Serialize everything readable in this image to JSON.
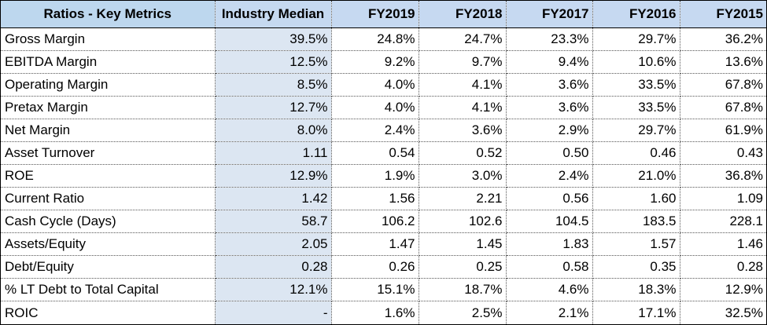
{
  "table": {
    "headers": [
      "Ratios - Key Metrics",
      "Industry Median",
      "FY2019",
      "FY2018",
      "FY2017",
      "FY2016",
      "FY2015"
    ],
    "rows": [
      {
        "label": "Gross Margin",
        "values": [
          "39.5%",
          "24.8%",
          "24.7%",
          "23.3%",
          "29.7%",
          "36.2%"
        ]
      },
      {
        "label": "EBITDA Margin",
        "values": [
          "12.5%",
          "9.2%",
          "9.7%",
          "9.4%",
          "10.6%",
          "13.6%"
        ]
      },
      {
        "label": "Operating Margin",
        "values": [
          "8.5%",
          "4.0%",
          "4.1%",
          "3.6%",
          "33.5%",
          "67.8%"
        ]
      },
      {
        "label": "Pretax Margin",
        "values": [
          "12.7%",
          "4.0%",
          "4.1%",
          "3.6%",
          "33.5%",
          "67.8%"
        ]
      },
      {
        "label": "Net Margin",
        "values": [
          "8.0%",
          "2.4%",
          "3.6%",
          "2.9%",
          "29.7%",
          "61.9%"
        ]
      },
      {
        "label": "Asset Turnover",
        "values": [
          "1.11",
          "0.54",
          "0.52",
          "0.50",
          "0.46",
          "0.43"
        ]
      },
      {
        "label": "ROE",
        "values": [
          "12.9%",
          "1.9%",
          "3.0%",
          "2.4%",
          "21.0%",
          "36.8%"
        ]
      },
      {
        "label": "Current Ratio",
        "values": [
          "1.42",
          "1.56",
          "2.21",
          "0.56",
          "1.60",
          "1.09"
        ]
      },
      {
        "label": "Cash Cycle (Days)",
        "values": [
          "58.7",
          "106.2",
          "102.6",
          "104.5",
          "183.5",
          "228.1"
        ]
      },
      {
        "label": "Assets/Equity",
        "values": [
          "2.05",
          "1.47",
          "1.45",
          "1.83",
          "1.57",
          "1.46"
        ]
      },
      {
        "label": "Debt/Equity",
        "values": [
          "0.28",
          "0.26",
          "0.25",
          "0.58",
          "0.35",
          "0.28"
        ]
      },
      {
        "label": "% LT Debt to Total Capital",
        "values": [
          "12.1%",
          "15.1%",
          "18.7%",
          "4.6%",
          "18.3%",
          "12.9%"
        ]
      },
      {
        "label": "ROIC",
        "values": [
          "-",
          "1.6%",
          "2.5%",
          "2.1%",
          "17.1%",
          "32.5%"
        ]
      }
    ]
  },
  "colors": {
    "header_fill": "#c6d9f1",
    "median_fill": "#dce6f2",
    "grid_line": "#555555"
  }
}
